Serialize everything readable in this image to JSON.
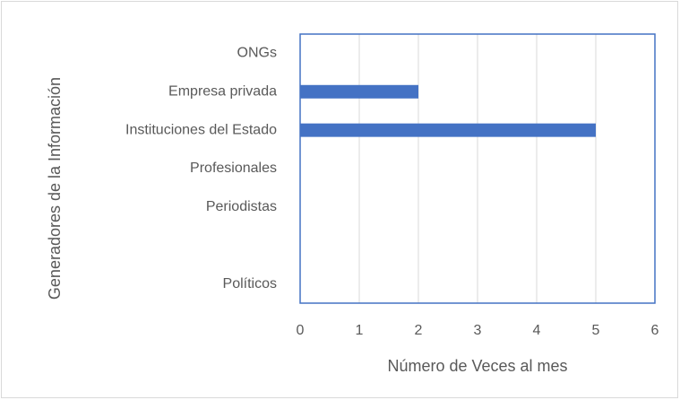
{
  "chart_data": {
    "type": "barh",
    "x_label": "Número de Veces al mes",
    "y_label": "Generadores de la Información",
    "categories": [
      "ONGs",
      "Empresa privada",
      "Instituciones del Estado",
      "Profesionales",
      "Periodistas",
      null,
      "Políticos"
    ],
    "values": [
      0,
      2,
      5,
      0,
      0,
      0,
      0
    ],
    "color": "#4472c4",
    "xlim": [
      0,
      6
    ],
    "xticks": [
      0,
      1,
      2,
      3,
      4,
      5,
      6
    ],
    "grid": true
  }
}
